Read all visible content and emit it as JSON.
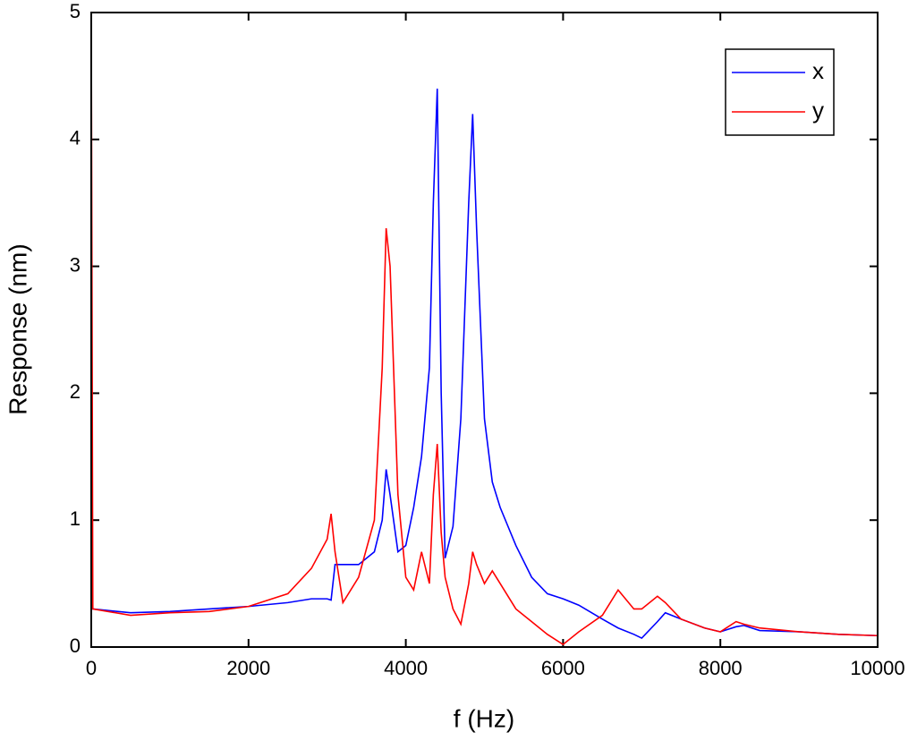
{
  "chart_data": {
    "type": "line",
    "xlabel": "f (Hz)",
    "ylabel": "Response (nm)",
    "x": [
      0,
      20,
      500,
      1000,
      1500,
      2000,
      2500,
      2800,
      3000,
      3050,
      3100,
      3200,
      3400,
      3600,
      3700,
      3750,
      3800,
      3900,
      4000,
      4100,
      4200,
      4300,
      4350,
      4400,
      4450,
      4500,
      4600,
      4700,
      4800,
      4850,
      4900,
      5000,
      5100,
      5200,
      5400,
      5600,
      5800,
      6000,
      6200,
      6500,
      6700,
      6900,
      7000,
      7200,
      7300,
      7500,
      7800,
      8000,
      8200,
      8300,
      8500,
      9000,
      9500,
      10000
    ],
    "series": [
      {
        "name": "x",
        "color": "#0000ff",
        "values": [
          0.32,
          0.3,
          0.27,
          0.28,
          0.3,
          0.32,
          0.35,
          0.38,
          0.38,
          0.37,
          0.65,
          0.65,
          0.65,
          0.75,
          1.0,
          1.4,
          1.2,
          0.75,
          0.8,
          1.1,
          1.5,
          2.2,
          3.5,
          4.4,
          2.0,
          0.7,
          0.95,
          1.8,
          3.5,
          4.2,
          3.3,
          1.8,
          1.3,
          1.1,
          0.8,
          0.55,
          0.42,
          0.38,
          0.33,
          0.22,
          0.15,
          0.1,
          0.07,
          0.2,
          0.27,
          0.22,
          0.15,
          0.12,
          0.16,
          0.17,
          0.13,
          0.12,
          0.1,
          0.09
        ]
      },
      {
        "name": "y",
        "color": "#ff0000",
        "values": [
          5,
          0.3,
          0.25,
          0.27,
          0.28,
          0.32,
          0.42,
          0.62,
          0.85,
          1.05,
          0.75,
          0.35,
          0.55,
          1.0,
          2.2,
          3.3,
          3.0,
          1.2,
          0.55,
          0.45,
          0.75,
          0.5,
          1.2,
          1.6,
          0.9,
          0.55,
          0.3,
          0.18,
          0.5,
          0.75,
          0.65,
          0.5,
          0.6,
          0.5,
          0.3,
          0.2,
          0.1,
          0.02,
          0.12,
          0.25,
          0.45,
          0.3,
          0.3,
          0.4,
          0.35,
          0.22,
          0.15,
          0.12,
          0.2,
          0.18,
          0.15,
          0.12,
          0.1,
          0.09
        ]
      }
    ],
    "xlim": [
      0,
      10000
    ],
    "xticks": [
      0,
      2000,
      4000,
      6000,
      8000,
      10000
    ],
    "ylim": [
      0,
      5
    ],
    "yticks": [
      0,
      1,
      2,
      3,
      4,
      5
    ],
    "legend": "upper right"
  }
}
